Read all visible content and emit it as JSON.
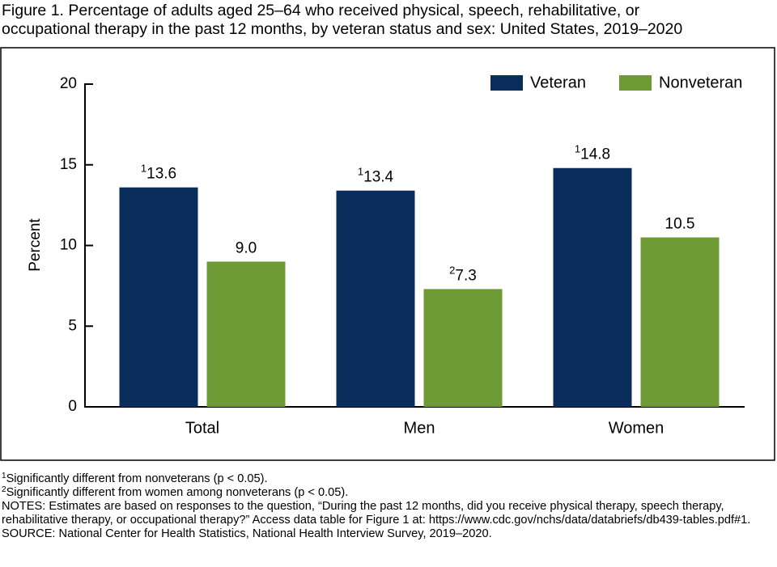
{
  "chart_data": {
    "type": "bar",
    "title": [
      "Figure 1. Percentage of adults aged 25–64 who received physical, speech, rehabilitative, or",
      "occupational therapy in the past 12 months, by veteran status and sex: United States, 2019–2020"
    ],
    "ylabel": "Percent",
    "categories": [
      "Total",
      "Men",
      "Women"
    ],
    "series": [
      {
        "name": "Veteran",
        "color": "#0b2d5b",
        "values": [
          13.6,
          13.4,
          14.8
        ],
        "value_labels": [
          "13.6",
          "13.4",
          "14.8"
        ],
        "label_marks": [
          "1",
          "1",
          "1"
        ]
      },
      {
        "name": "Nonveteran",
        "color": "#6e9a35",
        "values": [
          9.0,
          7.3,
          10.5
        ],
        "value_labels": [
          "9.0",
          "7.3",
          "10.5"
        ],
        "label_marks": [
          null,
          "2",
          null
        ]
      }
    ],
    "ylim": [
      0,
      20
    ],
    "yticks": [
      0,
      5,
      10,
      15,
      20
    ],
    "legend": "top-right",
    "footnotes": [
      {
        "mark": "1",
        "text": "Significantly different from nonveterans (p < 0.05)."
      },
      {
        "mark": "2",
        "text": "Significantly different from women among nonveterans (p < 0.05)."
      }
    ],
    "notes": "NOTES: Estimates are based on responses to the question, “During the past 12 months, did you receive physical therapy, speech therapy, rehabilitative therapy, or occupational therapy?” Access data table for Figure 1 at: https://www.cdc.gov/nchs/data/databriefs/db439-tables.pdf#1.",
    "source": "SOURCE: National Center for Health Statistics, National Health Interview Survey, 2019–2020."
  }
}
